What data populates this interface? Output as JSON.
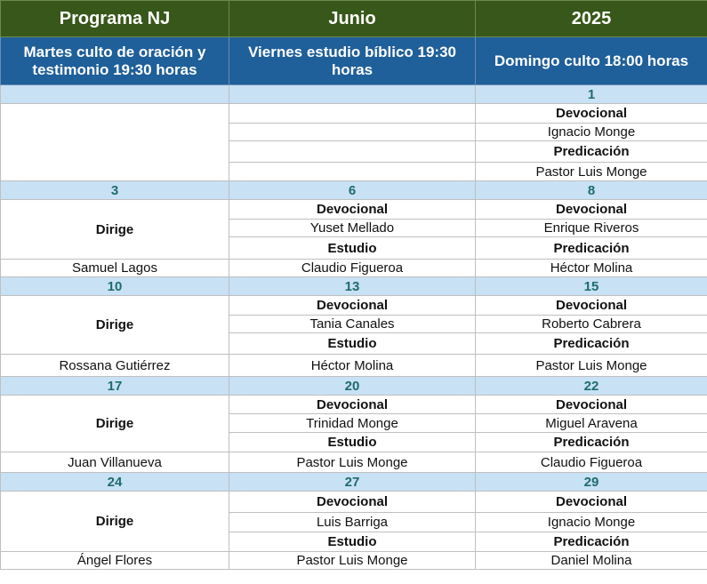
{
  "header": {
    "col1": "Programa NJ",
    "col2": "Junio",
    "col3": "2025"
  },
  "subheader": {
    "col1": "Martes culto de oración y testimonio 19:30 horas",
    "col2": "Viernes estudio bíblico 19:30 horas",
    "col3": "Domingo culto 18:00 horas"
  },
  "week1": {
    "dates": [
      "",
      "",
      "1"
    ],
    "sunday": {
      "devocional_label": "Devocional",
      "devocional_name": "Ignacio Monge",
      "predicacion_label": "Predicación",
      "predicacion_name": "Pastor Luis Monge"
    }
  },
  "weeks": [
    {
      "dates": [
        "3",
        "6",
        "8"
      ],
      "tuesday": {
        "label": "Dirige",
        "name": "Samuel Lagos"
      },
      "friday": {
        "devocional_label": "Devocional",
        "devocional_name": "Yuset Mellado",
        "estudio_label": "Estudio",
        "estudio_name": "Claudio Figueroa"
      },
      "sunday": {
        "devocional_label": "Devocional",
        "devocional_name": "Enrique Riveros",
        "predicacion_label": "Predicación",
        "predicacion_name": "Héctor Molina"
      }
    },
    {
      "dates": [
        "10",
        "13",
        "15"
      ],
      "tuesday": {
        "label": "Dirige",
        "name": "Rossana Gutiérrez"
      },
      "friday": {
        "devocional_label": "Devocional",
        "devocional_name": "Tania Canales",
        "estudio_label": "Estudio",
        "estudio_name": "Héctor Molina"
      },
      "sunday": {
        "devocional_label": "Devocional",
        "devocional_name": "Roberto Cabrera",
        "predicacion_label": "Predicación",
        "predicacion_name": "Pastor Luis Monge"
      }
    },
    {
      "dates": [
        "17",
        "20",
        "22"
      ],
      "tuesday": {
        "label": "Dirige",
        "name": "Juan Villanueva"
      },
      "friday": {
        "devocional_label": "Devocional",
        "devocional_name": "Trinidad Monge",
        "estudio_label": "Estudio",
        "estudio_name": "Pastor Luis Monge"
      },
      "sunday": {
        "devocional_label": "Devocional",
        "devocional_name": "Miguel Aravena",
        "predicacion_label": "Predicación",
        "predicacion_name": "Claudio Figueroa"
      }
    },
    {
      "dates": [
        "24",
        "27",
        "29"
      ],
      "tuesday": {
        "label": "Dirige",
        "name": "Ángel Flores"
      },
      "friday": {
        "devocional_label": "Devocional",
        "devocional_name": "Luis Barriga",
        "estudio_label": "Estudio",
        "estudio_name": "Pastor Luis Monge"
      },
      "sunday": {
        "devocional_label": "Devocional",
        "devocional_name": "Ignacio Monge",
        "predicacion_label": "Predicación",
        "predicacion_name": "Daniel Molina"
      }
    }
  ]
}
